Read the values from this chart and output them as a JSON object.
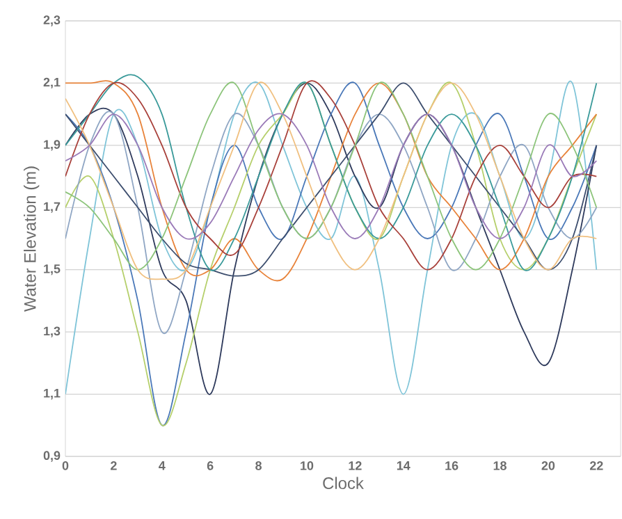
{
  "chart_data": {
    "type": "line",
    "xlabel": "Clock",
    "ylabel": "Water Elevation (m)",
    "xlim": [
      0,
      23
    ],
    "ylim": [
      0.9,
      2.3
    ],
    "xticks": [
      0,
      2,
      4,
      6,
      8,
      10,
      12,
      14,
      16,
      18,
      20,
      22
    ],
    "yticks": [
      {
        "value": 0.9,
        "label": "0,9"
      },
      {
        "value": 1.1,
        "label": "1,1"
      },
      {
        "value": 1.3,
        "label": "1,3"
      },
      {
        "value": 1.5,
        "label": "1,5"
      },
      {
        "value": 1.7,
        "label": "1,7"
      },
      {
        "value": 1.9,
        "label": "1,9"
      },
      {
        "value": 2.1,
        "label": "2,1"
      },
      {
        "value": 2.3,
        "label": "2,3"
      }
    ],
    "grid": "y",
    "legend": false,
    "line_style": "solid",
    "x": [
      0,
      1,
      2,
      3,
      4,
      5,
      6,
      7,
      8,
      9,
      10,
      11,
      12,
      13,
      14,
      15,
      16,
      17,
      18,
      19,
      20,
      21,
      22
    ],
    "series": [
      {
        "color": "#7fc4d8",
        "values": [
          1.1,
          1.6,
          2.0,
          1.9,
          1.6,
          1.5,
          1.7,
          2.0,
          2.1,
          1.9,
          1.7,
          1.6,
          1.8,
          1.5,
          1.1,
          1.5,
          1.9,
          2.0,
          1.8,
          1.6,
          1.8,
          2.1,
          1.5
        ]
      },
      {
        "color": "#2e3a5c",
        "values": [
          1.9,
          2.0,
          2.0,
          1.8,
          1.5,
          1.4,
          1.1,
          1.5,
          1.8,
          2.0,
          2.1,
          2.0,
          1.8,
          1.7,
          1.9,
          2.0,
          1.9,
          1.7,
          1.5,
          1.3,
          1.2,
          1.5,
          1.9
        ]
      },
      {
        "color": "#4a78b8",
        "values": [
          2.0,
          1.9,
          1.7,
          1.4,
          1.0,
          1.3,
          1.7,
          1.9,
          1.7,
          1.6,
          1.8,
          2.0,
          2.1,
          1.9,
          1.7,
          1.6,
          1.7,
          1.9,
          2.0,
          1.8,
          1.6,
          1.7,
          1.9
        ]
      },
      {
        "color": "#b5cf6b",
        "values": [
          1.7,
          1.8,
          1.6,
          1.3,
          1.0,
          1.2,
          1.5,
          1.7,
          1.9,
          2.0,
          2.1,
          1.9,
          1.7,
          1.6,
          1.8,
          2.0,
          2.1,
          1.9,
          1.6,
          1.5,
          1.6,
          1.8,
          2.0
        ]
      },
      {
        "color": "#8fa6c4",
        "values": [
          1.6,
          1.9,
          2.0,
          1.7,
          1.3,
          1.5,
          1.8,
          2.0,
          1.9,
          1.7,
          1.6,
          1.7,
          1.9,
          2.0,
          1.9,
          1.7,
          1.5,
          1.6,
          1.8,
          1.9,
          1.7,
          1.6,
          1.7
        ]
      },
      {
        "color": "#e8833a",
        "values": [
          2.1,
          2.1,
          2.1,
          2.0,
          1.7,
          1.5,
          1.5,
          1.6,
          1.5,
          1.47,
          1.6,
          1.8,
          2.0,
          2.1,
          2.0,
          1.8,
          1.7,
          1.6,
          1.5,
          1.6,
          1.8,
          1.9,
          2.0
        ]
      },
      {
        "color": "#3d4e6e",
        "values": [
          2.0,
          1.9,
          1.8,
          1.7,
          1.6,
          1.52,
          1.5,
          1.48,
          1.5,
          1.6,
          1.7,
          1.8,
          1.9,
          2.0,
          2.1,
          2.0,
          1.9,
          1.8,
          1.7,
          1.6,
          1.5,
          1.6,
          1.9
        ]
      },
      {
        "color": "#3a9a9a",
        "values": [
          1.9,
          2.0,
          2.1,
          2.12,
          2.0,
          1.7,
          1.5,
          1.6,
          1.8,
          2.0,
          2.1,
          1.9,
          1.7,
          1.6,
          1.7,
          1.9,
          2.0,
          1.9,
          1.7,
          1.5,
          1.6,
          1.8,
          2.1
        ]
      },
      {
        "color": "#a8403a",
        "values": [
          1.8,
          2.0,
          2.1,
          2.05,
          1.9,
          1.7,
          1.6,
          1.55,
          1.7,
          1.9,
          2.1,
          2.05,
          1.9,
          1.7,
          1.6,
          1.5,
          1.6,
          1.8,
          1.9,
          1.8,
          1.7,
          1.8,
          1.8
        ]
      },
      {
        "color": "#8cc47a",
        "values": [
          1.75,
          1.7,
          1.6,
          1.5,
          1.6,
          1.8,
          2.0,
          2.1,
          1.9,
          1.7,
          1.6,
          1.7,
          1.9,
          2.1,
          2.0,
          1.8,
          1.6,
          1.5,
          1.6,
          1.8,
          2.0,
          1.9,
          1.7
        ]
      },
      {
        "color": "#f0c080",
        "values": [
          2.05,
          1.9,
          1.7,
          1.5,
          1.47,
          1.5,
          1.7,
          1.9,
          2.1,
          2.0,
          1.8,
          1.6,
          1.5,
          1.6,
          1.8,
          2.0,
          2.1,
          2.0,
          1.8,
          1.6,
          1.5,
          1.6,
          1.6
        ]
      },
      {
        "color": "#9a7ab8",
        "values": [
          1.85,
          1.9,
          2.0,
          1.9,
          1.7,
          1.6,
          1.65,
          1.8,
          1.95,
          2.0,
          1.9,
          1.7,
          1.6,
          1.7,
          1.9,
          2.0,
          1.9,
          1.7,
          1.6,
          1.7,
          1.9,
          1.8,
          1.85
        ]
      }
    ]
  }
}
